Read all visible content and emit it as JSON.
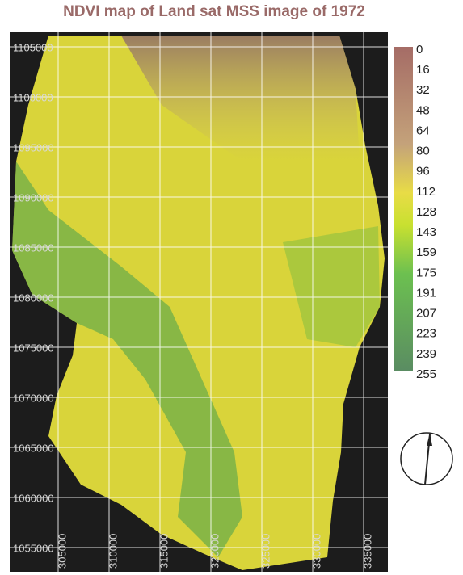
{
  "title": "NDVI map of  Land sat MSS image of 1972",
  "map": {
    "y_labels": [
      "1105000",
      "1100000",
      "1095000",
      "1090000",
      "1085000",
      "1080000",
      "1075000",
      "1070000",
      "1065000",
      "1060000",
      "1055000"
    ],
    "x_labels": [
      "305000",
      "310000",
      "315000",
      "320000",
      "325000",
      "330000",
      "335000"
    ]
  },
  "legend": {
    "labels": [
      0,
      16,
      32,
      48,
      64,
      80,
      96,
      112,
      128,
      143,
      159,
      175,
      191,
      207,
      223,
      239,
      255
    ]
  }
}
